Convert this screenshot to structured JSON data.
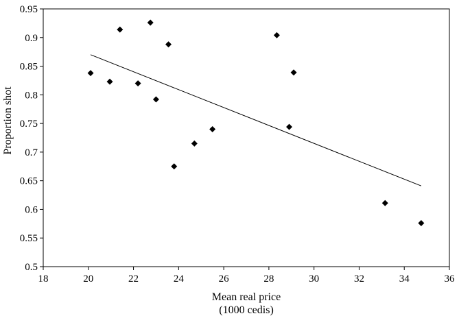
{
  "chart_data": {
    "type": "scatter",
    "title": "",
    "xlabel": "Mean real price",
    "xlabel_sub": "(1000 cedis)",
    "ylabel": "Proportion shot",
    "xlim": [
      18,
      36
    ],
    "ylim": [
      0.5,
      0.95
    ],
    "xticks": [
      18,
      20,
      22,
      24,
      26,
      28,
      30,
      32,
      34,
      36
    ],
    "yticks": [
      0.5,
      0.55,
      0.6,
      0.65,
      0.7,
      0.75,
      0.8,
      0.85,
      0.9,
      0.95
    ],
    "grid": false,
    "legend": "none",
    "marker": "diamond",
    "marker_color": "#000000",
    "points": [
      {
        "x": 20.1,
        "y": 0.838
      },
      {
        "x": 20.95,
        "y": 0.823
      },
      {
        "x": 21.4,
        "y": 0.914
      },
      {
        "x": 22.2,
        "y": 0.82
      },
      {
        "x": 22.75,
        "y": 0.926
      },
      {
        "x": 23.0,
        "y": 0.792
      },
      {
        "x": 23.55,
        "y": 0.888
      },
      {
        "x": 23.8,
        "y": 0.675
      },
      {
        "x": 24.7,
        "y": 0.715
      },
      {
        "x": 25.5,
        "y": 0.74
      },
      {
        "x": 28.35,
        "y": 0.904
      },
      {
        "x": 28.9,
        "y": 0.744
      },
      {
        "x": 29.1,
        "y": 0.839
      },
      {
        "x": 33.15,
        "y": 0.611
      },
      {
        "x": 34.75,
        "y": 0.576
      }
    ],
    "trendline": {
      "x": [
        20.1,
        34.75
      ],
      "y": [
        0.87,
        0.641
      ],
      "color": "#000000"
    }
  }
}
